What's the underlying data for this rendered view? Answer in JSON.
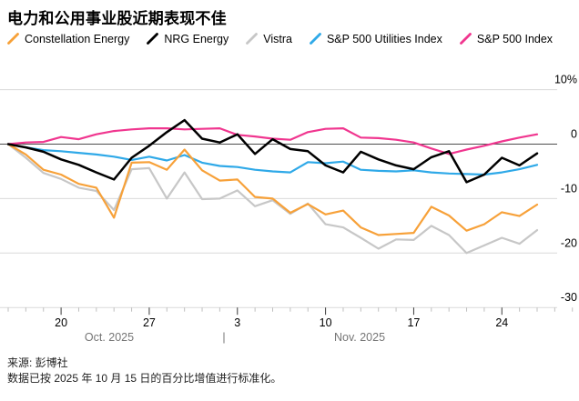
{
  "title": "电力和公用事业股近期表现不佳",
  "legend": [
    {
      "id": "constellation-energy",
      "label": "Constellation Energy",
      "color": "#F7A139"
    },
    {
      "id": "nrg-energy",
      "label": "NRG Energy",
      "color": "#000000"
    },
    {
      "id": "vistra",
      "label": "Vistra",
      "color": "#C7C7C7"
    },
    {
      "id": "sp500-utilities-index",
      "label": "S&P 500 Utilities Index",
      "color": "#2FA9E8"
    },
    {
      "id": "sp500-index",
      "label": "S&P 500 Index",
      "color": "#F0368F"
    }
  ],
  "chart_data": {
    "type": "line",
    "x": [
      "Oct 15",
      "Oct 16",
      "Oct 17",
      "Oct 20",
      "Oct 21",
      "Oct 22",
      "Oct 23",
      "Oct 24",
      "Oct 27",
      "Oct 28",
      "Oct 29",
      "Oct 30",
      "Oct 31",
      "Nov 3",
      "Nov 4",
      "Nov 5",
      "Nov 6",
      "Nov 7",
      "Nov 10",
      "Nov 11",
      "Nov 12",
      "Nov 13",
      "Nov 14",
      "Nov 17",
      "Nov 18",
      "Nov 19",
      "Nov 20",
      "Nov 21",
      "Nov 24",
      "Nov 25",
      "Nov 26"
    ],
    "series": [
      {
        "id": "vistra",
        "name": "Vistra",
        "color": "#C7C7C7",
        "values": [
          0,
          -2.5,
          -5.3,
          -6.4,
          -8.0,
          -8.6,
          -12.1,
          -4.6,
          -4.4,
          -10.0,
          -5.2,
          -10.1,
          -10.0,
          -8.5,
          -11.4,
          -10.3,
          -12.8,
          -10.9,
          -14.7,
          -15.3,
          -17.2,
          -19.2,
          -17.5,
          -17.6,
          -15.0,
          -16.7,
          -20.0,
          -18.6,
          -17.2,
          -18.3,
          -15.8
        ]
      },
      {
        "id": "sp500-utilities-index",
        "name": "S&P 500 Utilities Index",
        "color": "#2FA9E8",
        "values": [
          0,
          -0.6,
          -1.1,
          -1.3,
          -1.6,
          -1.9,
          -2.3,
          -2.9,
          -2.3,
          -3.0,
          -2.0,
          -3.4,
          -4.0,
          -4.2,
          -4.7,
          -5.0,
          -5.2,
          -3.3,
          -3.5,
          -3.2,
          -4.7,
          -4.9,
          -5.0,
          -4.8,
          -5.2,
          -5.4,
          -5.5,
          -5.6,
          -5.2,
          -4.6,
          -3.8
        ]
      },
      {
        "id": "constellation-energy",
        "name": "Constellation Energy",
        "color": "#F7A139",
        "values": [
          0,
          -1.9,
          -4.7,
          -5.6,
          -7.3,
          -8.0,
          -13.5,
          -3.4,
          -3.3,
          -4.7,
          -1.0,
          -4.8,
          -6.7,
          -6.5,
          -9.7,
          -10.0,
          -12.6,
          -11.0,
          -12.9,
          -12.2,
          -15.3,
          -16.7,
          -16.5,
          -16.3,
          -11.5,
          -13.1,
          -15.9,
          -14.7,
          -12.5,
          -13.2,
          -11.1
        ]
      },
      {
        "id": "sp500-index",
        "name": "S&P 500 Index",
        "color": "#F0368F",
        "values": [
          0,
          0.3,
          0.4,
          1.3,
          0.9,
          1.8,
          2.4,
          2.7,
          2.9,
          2.9,
          2.7,
          2.8,
          2.9,
          1.7,
          1.4,
          1.0,
          0.8,
          2.2,
          2.8,
          2.9,
          1.2,
          1.1,
          0.8,
          0.3,
          -0.8,
          -1.8,
          -1.0,
          -0.3,
          0.5,
          1.2,
          1.8
        ]
      },
      {
        "id": "nrg-energy",
        "name": "NRG Energy",
        "color": "#000000",
        "values": [
          0,
          -0.6,
          -1.4,
          -2.8,
          -3.8,
          -5.2,
          -6.5,
          -2.5,
          -0.3,
          2.2,
          4.4,
          1.0,
          0.3,
          1.8,
          -1.8,
          0.9,
          -0.9,
          -1.3,
          -3.9,
          -5.2,
          -1.4,
          -2.8,
          -3.9,
          -4.6,
          -2.4,
          -1.3,
          -7.0,
          -5.6,
          -2.5,
          -3.9,
          -1.7
        ]
      }
    ],
    "ylim": [
      -30,
      10
    ],
    "yticks": [
      {
        "label": "10%",
        "value": 10
      },
      {
        "label": "0",
        "value": 0
      },
      {
        "label": "-10",
        "value": -10
      },
      {
        "label": "-20",
        "value": -20
      },
      {
        "label": "-30",
        "value": -30
      }
    ],
    "xticks": [
      {
        "label": "20",
        "index": 3
      },
      {
        "label": "27",
        "index": 8
      },
      {
        "label": "3",
        "index": 13
      },
      {
        "label": "10",
        "index": 18
      },
      {
        "label": "17",
        "index": 23
      },
      {
        "label": "24",
        "index": 28
      }
    ],
    "trailing_minor_ticks": 2,
    "months": {
      "left_label": "Oct. 2025",
      "separator": "|",
      "right_label": "Nov. 2025"
    },
    "grid_color": "#DADADA",
    "zero_line_color": "#4D4D4D",
    "normalized_note_date": "2025-10-15"
  },
  "footer": {
    "source": "来源: 彭博社",
    "note": "数据已按 2025 年 10 月 15 日的百分比增值进行标准化。"
  }
}
